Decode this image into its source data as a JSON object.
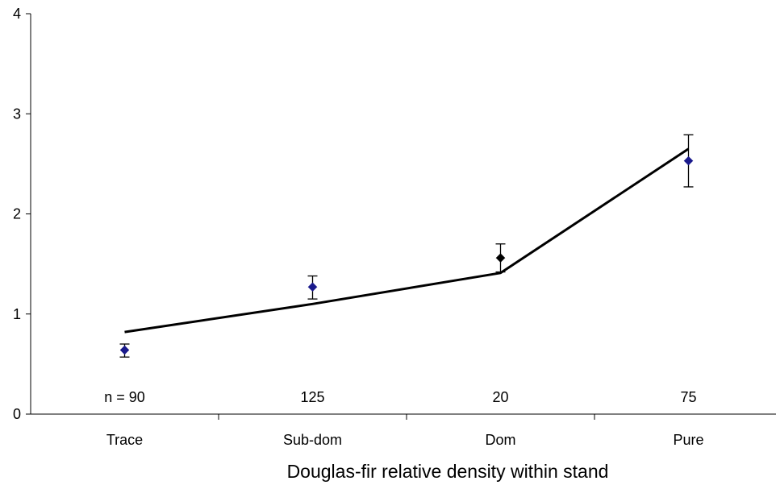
{
  "chart_data": {
    "type": "line",
    "title": "",
    "xlabel": "Douglas-fir relative density within stand",
    "ylabel": "",
    "categories": [
      "Trace",
      "Sub-dom",
      "Dom",
      "Pure"
    ],
    "ylim": [
      0,
      4
    ],
    "yticks": [
      0,
      1,
      2,
      3,
      4
    ],
    "grid": false,
    "legend": "none",
    "sample_sizes": [
      "n = 90",
      "125",
      "20",
      "75"
    ],
    "series": [
      {
        "kind": "line",
        "values": [
          0.82,
          1.1,
          1.41,
          2.65
        ],
        "color": "#000000"
      },
      {
        "kind": "markers_with_error_bars",
        "values": [
          0.64,
          1.27,
          1.56,
          2.53
        ],
        "error_low": [
          0.57,
          1.15,
          1.42,
          2.27
        ],
        "error_high": [
          0.7,
          1.38,
          1.7,
          2.79
        ],
        "colors": [
          "#1a1a8c",
          "#1a1a8c",
          "#000000",
          "#1a1a8c"
        ]
      }
    ]
  }
}
